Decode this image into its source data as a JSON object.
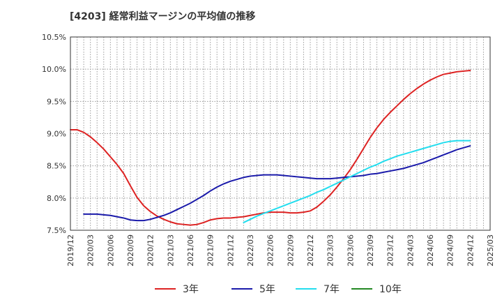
{
  "chart_data": {
    "type": "line",
    "title": "[4203]  経常利益マージンの平均値の推移",
    "xlabel": "",
    "ylabel": "",
    "ylim": [
      7.5,
      10.5
    ],
    "yticks": [
      "7.5%",
      "8.0%",
      "8.5%",
      "9.0%",
      "9.5%",
      "10.0%",
      "10.5%"
    ],
    "xticks": [
      "2019/12",
      "2020/03",
      "2020/06",
      "2020/09",
      "2020/12",
      "2021/03",
      "2021/06",
      "2021/09",
      "2021/12",
      "2022/03",
      "2022/06",
      "2022/09",
      "2022/12",
      "2023/03",
      "2023/06",
      "2023/09",
      "2023/12",
      "2024/03",
      "2024/06",
      "2024/09",
      "2024/12",
      "2025/03"
    ],
    "grid": true,
    "legend_position": "bottom",
    "series": [
      {
        "name": "3年",
        "color": "#dd2222",
        "points": [
          [
            "2019/12",
            9.06
          ],
          [
            "2020/01",
            9.06
          ],
          [
            "2020/02",
            9.02
          ],
          [
            "2020/03",
            8.95
          ],
          [
            "2020/04",
            8.86
          ],
          [
            "2020/05",
            8.76
          ],
          [
            "2020/06",
            8.64
          ],
          [
            "2020/07",
            8.52
          ],
          [
            "2020/08",
            8.38
          ],
          [
            "2020/09",
            8.19
          ],
          [
            "2020/10",
            8.01
          ],
          [
            "2020/11",
            7.88
          ],
          [
            "2020/12",
            7.79
          ],
          [
            "2021/01",
            7.72
          ],
          [
            "2021/02",
            7.67
          ],
          [
            "2021/03",
            7.63
          ],
          [
            "2021/04",
            7.6
          ],
          [
            "2021/05",
            7.59
          ],
          [
            "2021/06",
            7.58
          ],
          [
            "2021/07",
            7.59
          ],
          [
            "2021/08",
            7.62
          ],
          [
            "2021/09",
            7.66
          ],
          [
            "2021/10",
            7.68
          ],
          [
            "2021/11",
            7.69
          ],
          [
            "2021/12",
            7.69
          ],
          [
            "2022/01",
            7.7
          ],
          [
            "2022/02",
            7.71
          ],
          [
            "2022/03",
            7.73
          ],
          [
            "2022/04",
            7.75
          ],
          [
            "2022/05",
            7.77
          ],
          [
            "2022/06",
            7.78
          ],
          [
            "2022/07",
            7.78
          ],
          [
            "2022/08",
            7.78
          ],
          [
            "2022/09",
            7.77
          ],
          [
            "2022/10",
            7.77
          ],
          [
            "2022/11",
            7.78
          ],
          [
            "2022/12",
            7.8
          ],
          [
            "2023/01",
            7.86
          ],
          [
            "2023/02",
            7.95
          ],
          [
            "2023/03",
            8.05
          ],
          [
            "2023/04",
            8.17
          ],
          [
            "2023/05",
            8.3
          ],
          [
            "2023/06",
            8.44
          ],
          [
            "2023/07",
            8.6
          ],
          [
            "2023/08",
            8.77
          ],
          [
            "2023/09",
            8.94
          ],
          [
            "2023/10",
            9.09
          ],
          [
            "2023/11",
            9.22
          ],
          [
            "2023/12",
            9.33
          ],
          [
            "2024/01",
            9.43
          ],
          [
            "2024/02",
            9.53
          ],
          [
            "2024/03",
            9.62
          ],
          [
            "2024/04",
            9.7
          ],
          [
            "2024/05",
            9.77
          ],
          [
            "2024/06",
            9.83
          ],
          [
            "2024/07",
            9.88
          ],
          [
            "2024/08",
            9.92
          ],
          [
            "2024/09",
            9.94
          ],
          [
            "2024/10",
            9.96
          ],
          [
            "2024/11",
            9.97
          ],
          [
            "2024/12",
            9.98
          ]
        ]
      },
      {
        "name": "5年",
        "color": "#1a1aaa",
        "points": [
          [
            "2020/02",
            7.75
          ],
          [
            "2020/03",
            7.75
          ],
          [
            "2020/04",
            7.75
          ],
          [
            "2020/05",
            7.74
          ],
          [
            "2020/06",
            7.73
          ],
          [
            "2020/07",
            7.71
          ],
          [
            "2020/08",
            7.69
          ],
          [
            "2020/09",
            7.66
          ],
          [
            "2020/10",
            7.65
          ],
          [
            "2020/11",
            7.65
          ],
          [
            "2020/12",
            7.67
          ],
          [
            "2021/01",
            7.7
          ],
          [
            "2021/02",
            7.73
          ],
          [
            "2021/03",
            7.77
          ],
          [
            "2021/04",
            7.82
          ],
          [
            "2021/05",
            7.87
          ],
          [
            "2021/06",
            7.92
          ],
          [
            "2021/07",
            7.98
          ],
          [
            "2021/08",
            8.04
          ],
          [
            "2021/09",
            8.11
          ],
          [
            "2021/10",
            8.17
          ],
          [
            "2021/11",
            8.22
          ],
          [
            "2021/12",
            8.26
          ],
          [
            "2022/01",
            8.29
          ],
          [
            "2022/02",
            8.32
          ],
          [
            "2022/03",
            8.34
          ],
          [
            "2022/04",
            8.35
          ],
          [
            "2022/05",
            8.36
          ],
          [
            "2022/06",
            8.36
          ],
          [
            "2022/07",
            8.36
          ],
          [
            "2022/08",
            8.35
          ],
          [
            "2022/09",
            8.34
          ],
          [
            "2022/10",
            8.33
          ],
          [
            "2022/11",
            8.32
          ],
          [
            "2022/12",
            8.31
          ],
          [
            "2023/01",
            8.3
          ],
          [
            "2023/02",
            8.3
          ],
          [
            "2023/03",
            8.3
          ],
          [
            "2023/04",
            8.31
          ],
          [
            "2023/05",
            8.32
          ],
          [
            "2023/06",
            8.33
          ],
          [
            "2023/07",
            8.34
          ],
          [
            "2023/08",
            8.35
          ],
          [
            "2023/09",
            8.37
          ],
          [
            "2023/10",
            8.38
          ],
          [
            "2023/11",
            8.4
          ],
          [
            "2023/12",
            8.42
          ],
          [
            "2024/01",
            8.44
          ],
          [
            "2024/02",
            8.46
          ],
          [
            "2024/03",
            8.49
          ],
          [
            "2024/04",
            8.52
          ],
          [
            "2024/05",
            8.55
          ],
          [
            "2024/06",
            8.59
          ],
          [
            "2024/07",
            8.63
          ],
          [
            "2024/08",
            8.67
          ],
          [
            "2024/09",
            8.71
          ],
          [
            "2024/10",
            8.75
          ],
          [
            "2024/11",
            8.78
          ],
          [
            "2024/12",
            8.81
          ]
        ]
      },
      {
        "name": "7年",
        "color": "#22ddee",
        "points": [
          [
            "2022/02",
            7.62
          ],
          [
            "2022/03",
            7.67
          ],
          [
            "2022/04",
            7.72
          ],
          [
            "2022/05",
            7.76
          ],
          [
            "2022/06",
            7.8
          ],
          [
            "2022/07",
            7.84
          ],
          [
            "2022/08",
            7.88
          ],
          [
            "2022/09",
            7.92
          ],
          [
            "2022/10",
            7.96
          ],
          [
            "2022/11",
            8.0
          ],
          [
            "2022/12",
            8.04
          ],
          [
            "2023/01",
            8.09
          ],
          [
            "2023/02",
            8.13
          ],
          [
            "2023/03",
            8.18
          ],
          [
            "2023/04",
            8.23
          ],
          [
            "2023/05",
            8.28
          ],
          [
            "2023/06",
            8.33
          ],
          [
            "2023/07",
            8.38
          ],
          [
            "2023/08",
            8.43
          ],
          [
            "2023/09",
            8.48
          ],
          [
            "2023/10",
            8.52
          ],
          [
            "2023/11",
            8.57
          ],
          [
            "2023/12",
            8.61
          ],
          [
            "2024/01",
            8.65
          ],
          [
            "2024/02",
            8.68
          ],
          [
            "2024/03",
            8.71
          ],
          [
            "2024/04",
            8.74
          ],
          [
            "2024/05",
            8.77
          ],
          [
            "2024/06",
            8.8
          ],
          [
            "2024/07",
            8.83
          ],
          [
            "2024/08",
            8.86
          ],
          [
            "2024/09",
            8.88
          ],
          [
            "2024/10",
            8.89
          ],
          [
            "2024/11",
            8.89
          ],
          [
            "2024/12",
            8.89
          ]
        ]
      },
      {
        "name": "10年",
        "color": "#228822",
        "points": []
      }
    ]
  }
}
